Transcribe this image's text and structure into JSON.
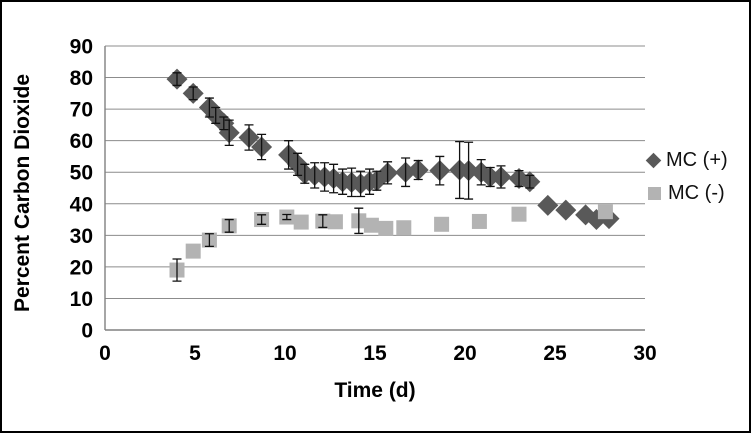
{
  "chart_data": {
    "type": "scatter",
    "title": "",
    "xlabel": "Time (d)",
    "ylabel": "Percent Carbon Dioxide",
    "xlim": [
      0,
      30
    ],
    "ylim": [
      0,
      90
    ],
    "xticks": [
      0,
      5,
      10,
      15,
      20,
      25,
      30
    ],
    "yticks": [
      0,
      10,
      20,
      30,
      40,
      50,
      60,
      70,
      80,
      90
    ],
    "grid": "horizontal",
    "gridline_color": "#8c8c8c",
    "axis_color": "#808080",
    "error_bar_color": "#111111",
    "legend_position": "right",
    "series": [
      {
        "name": "MC (+)",
        "marker": "diamond",
        "color": "#595959",
        "points": [
          [
            4.0,
            79.5,
            2
          ],
          [
            4.9,
            75,
            2
          ],
          [
            5.8,
            70.5,
            3
          ],
          [
            6.15,
            68,
            2.5
          ],
          [
            6.6,
            65.5,
            2
          ],
          [
            6.9,
            62.5,
            4
          ],
          [
            8.0,
            61,
            4
          ],
          [
            8.7,
            58,
            4
          ],
          [
            10.2,
            55.5,
            4.5
          ],
          [
            10.7,
            52.5,
            3.5
          ],
          [
            11.1,
            49.5,
            3
          ],
          [
            11.65,
            49,
            4
          ],
          [
            12.2,
            48.5,
            4.5
          ],
          [
            12.7,
            48,
            4.5
          ],
          [
            13.2,
            47,
            4
          ],
          [
            13.7,
            46.8,
            4.5
          ],
          [
            14.2,
            46.3,
            4
          ],
          [
            14.7,
            47,
            4
          ],
          [
            15.1,
            47.3,
            3
          ],
          [
            15.7,
            49.8,
            3.5
          ],
          [
            16.7,
            50,
            4.5
          ],
          [
            17.4,
            50.7,
            3
          ],
          [
            18.6,
            50.5,
            4.5
          ],
          [
            19.7,
            50.7,
            9
          ],
          [
            20.2,
            50.5,
            9
          ],
          [
            20.9,
            50,
            4
          ],
          [
            21.4,
            48.5,
            3
          ],
          [
            22.0,
            48.5,
            3.5
          ],
          [
            23.0,
            48,
            2.5
          ],
          [
            23.6,
            47,
            2
          ],
          [
            24.6,
            39.5,
            0
          ],
          [
            25.6,
            38,
            0
          ],
          [
            26.7,
            36.5,
            0
          ],
          [
            27.3,
            35,
            0
          ],
          [
            28.0,
            35.3,
            0
          ]
        ]
      },
      {
        "name": "MC (-)",
        "marker": "square",
        "color": "#b3b3b3",
        "points": [
          [
            4.0,
            19,
            3.5
          ],
          [
            4.9,
            25,
            0
          ],
          [
            5.8,
            28.5,
            2
          ],
          [
            6.9,
            33,
            2
          ],
          [
            8.7,
            35,
            1.5
          ],
          [
            10.1,
            35.8,
            0.8
          ],
          [
            10.9,
            34.2,
            0
          ],
          [
            12.1,
            34.5,
            2
          ],
          [
            12.8,
            34.3,
            0
          ],
          [
            14.1,
            34.6,
            4
          ],
          [
            14.8,
            33.2,
            0
          ],
          [
            15.6,
            32.2,
            0
          ],
          [
            16.6,
            32.4,
            0
          ],
          [
            18.7,
            33.5,
            0
          ],
          [
            20.8,
            34.4,
            0
          ],
          [
            23.0,
            36.7,
            0
          ],
          [
            27.8,
            37.5,
            0
          ]
        ]
      }
    ]
  }
}
